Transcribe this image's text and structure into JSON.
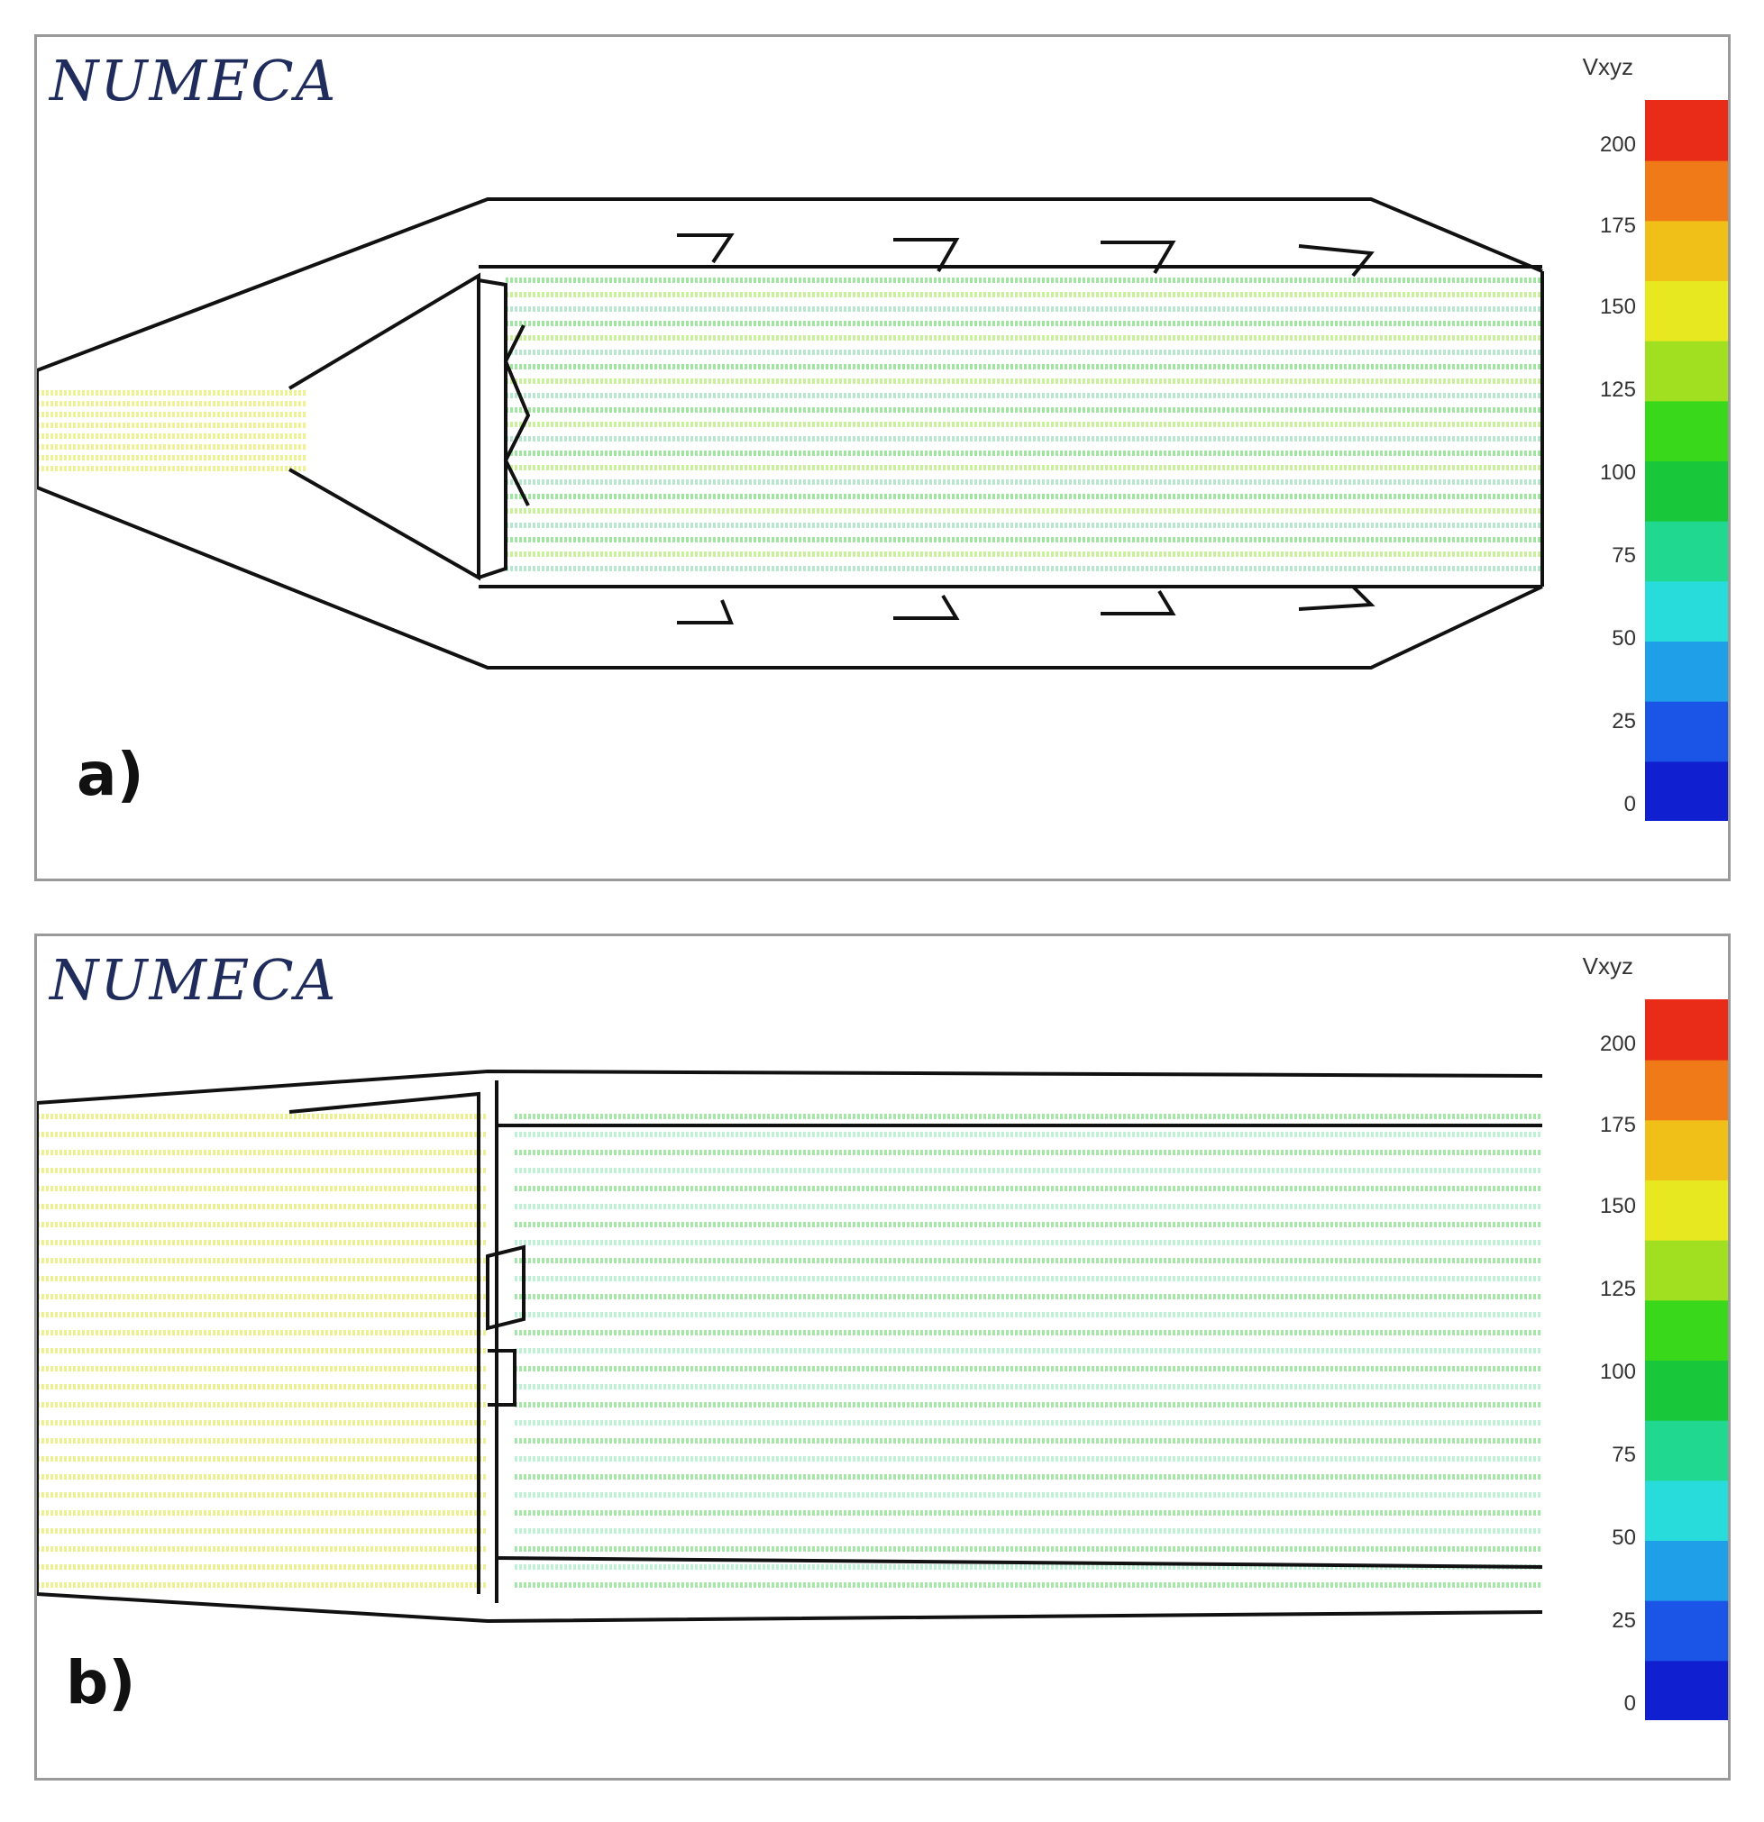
{
  "figure": {
    "panels": [
      {
        "id": "a",
        "brand": "NUMECA",
        "label": "a)",
        "legend_title": "Vxyz",
        "ticks": [
          "200",
          "175",
          "150",
          "125",
          "100",
          "75",
          "50",
          "25",
          "0"
        ]
      },
      {
        "id": "b",
        "brand": "NUMECA",
        "label": "b)",
        "legend_title": "Vxyz",
        "ticks": [
          "200",
          "175",
          "150",
          "125",
          "100",
          "75",
          "50",
          "25",
          "0"
        ]
      }
    ],
    "colormap": [
      "#1020d0",
      "#1a55e8",
      "#1f9fe8",
      "#28dcdc",
      "#20d890",
      "#18c83a",
      "#3ad81a",
      "#a0e020",
      "#e8e820",
      "#f0c018",
      "#f07a18",
      "#e82c18"
    ]
  }
}
